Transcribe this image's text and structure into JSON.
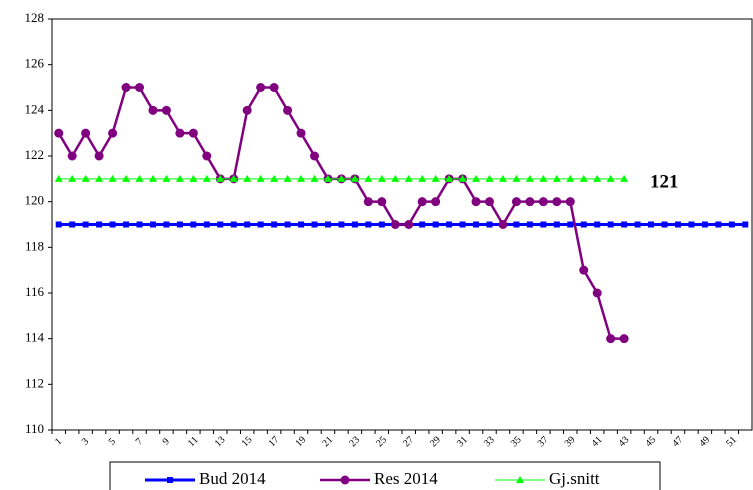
{
  "chart_data": {
    "type": "line",
    "categories": [
      "1",
      null,
      "3",
      null,
      "5",
      null,
      "7",
      null,
      "9",
      null,
      "11",
      null,
      "13",
      null,
      "15",
      null,
      "17",
      null,
      "19",
      null,
      "21",
      null,
      "23",
      null,
      "25",
      null,
      "27",
      null,
      "29",
      null,
      "31",
      null,
      "33",
      null,
      "35",
      null,
      "37",
      null,
      "39",
      null,
      "41",
      null,
      "43",
      null,
      "45",
      null,
      "47",
      null,
      "49",
      null,
      "51",
      null
    ],
    "series": [
      {
        "name": "Bud 2014",
        "color": "#0000ff",
        "marker": "square",
        "values": [
          119,
          119,
          119,
          119,
          119,
          119,
          119,
          119,
          119,
          119,
          119,
          119,
          119,
          119,
          119,
          119,
          119,
          119,
          119,
          119,
          119,
          119,
          119,
          119,
          119,
          119,
          119,
          119,
          119,
          119,
          119,
          119,
          119,
          119,
          119,
          119,
          119,
          119,
          119,
          119,
          119,
          119,
          119,
          119,
          119,
          119,
          119,
          119,
          119,
          119,
          119,
          119
        ]
      },
      {
        "name": "Res 2014",
        "color": "#800080",
        "marker": "circle",
        "values": [
          123,
          122,
          123,
          122,
          123,
          125,
          125,
          124,
          124,
          123,
          123,
          122,
          121,
          121,
          124,
          125,
          125,
          124,
          123,
          122,
          121,
          121,
          121,
          120,
          120,
          119,
          119,
          120,
          120,
          121,
          121,
          120,
          120,
          119,
          120,
          120,
          120,
          120,
          120,
          117,
          116,
          114,
          114,
          null,
          null,
          null,
          null,
          null,
          null,
          null,
          null,
          null
        ]
      },
      {
        "name": "Gj.snitt",
        "color": "#00ff00",
        "marker": "triangle",
        "values": [
          121,
          121,
          121,
          121,
          121,
          121,
          121,
          121,
          121,
          121,
          121,
          121,
          121,
          121,
          121,
          121,
          121,
          121,
          121,
          121,
          121,
          121,
          121,
          121,
          121,
          121,
          121,
          121,
          121,
          121,
          121,
          121,
          121,
          121,
          121,
          121,
          121,
          121,
          121,
          121,
          121,
          121,
          121,
          null,
          null,
          null,
          null,
          null,
          null,
          null,
          null,
          null
        ]
      }
    ],
    "annotation": "121",
    "ylim": [
      110,
      128
    ],
    "yticks": [
      110,
      112,
      114,
      116,
      118,
      120,
      122,
      124,
      126,
      128
    ],
    "grid": false,
    "legend": "bottom"
  }
}
